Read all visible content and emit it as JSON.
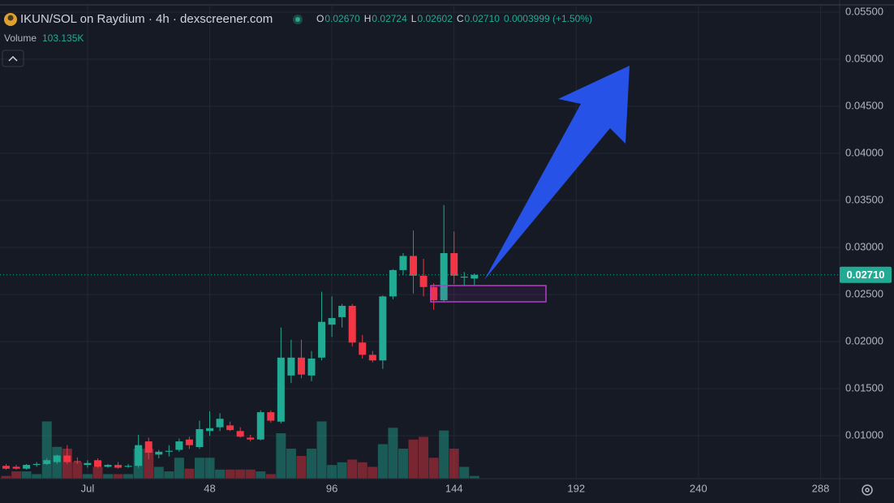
{
  "chart_data": {
    "type": "candlestick",
    "title": "IKUN/SOL on Raydium · 4h · dexscreener.com",
    "legend": [
      {
        "key": "O",
        "text": "0.02670"
      },
      {
        "key": "H",
        "text": "0.02724"
      },
      {
        "key": "L",
        "text": "0.02602"
      },
      {
        "key": "C",
        "text": "0.02710"
      }
    ],
    "change_text": "0.0003999 (+1.50%)",
    "x": [
      -32,
      -28,
      -24,
      -20,
      -16,
      -12,
      -8,
      -4,
      0,
      4,
      8,
      12,
      16,
      20,
      24,
      28,
      32,
      36,
      40,
      44,
      48,
      52,
      56,
      60,
      64,
      68,
      72,
      76,
      80,
      84,
      88,
      92,
      96,
      100,
      104,
      108,
      112,
      116,
      120,
      124,
      128,
      132,
      136,
      140,
      144,
      148,
      152
    ],
    "open": [
      0.0068,
      0.0067,
      0.0065,
      0.0069,
      0.007,
      0.0072,
      0.0079,
      0.0073,
      0.0069,
      0.0074,
      0.0067,
      0.0069,
      0.0067,
      0.0068,
      0.0094,
      0.008,
      0.0083,
      0.0085,
      0.0096,
      0.0088,
      0.0105,
      0.0109,
      0.0111,
      0.0105,
      0.0098,
      0.0096,
      0.0125,
      0.0115,
      0.0164,
      0.0183,
      0.0164,
      0.0183,
      0.0218,
      0.0226,
      0.0238,
      0.0199,
      0.0186,
      0.018,
      0.0248,
      0.0276,
      0.0291,
      0.027,
      0.0258,
      0.0244,
      0.0294,
      0.0268,
      0.0267
    ],
    "high": [
      0.007,
      0.0069,
      0.007,
      0.0072,
      0.0076,
      0.008,
      0.009,
      0.0077,
      0.0074,
      0.0076,
      0.007,
      0.0072,
      0.007,
      0.0101,
      0.0098,
      0.0085,
      0.009,
      0.0097,
      0.0099,
      0.0116,
      0.0126,
      0.0124,
      0.0115,
      0.0109,
      0.0101,
      0.0127,
      0.0127,
      0.0215,
      0.0202,
      0.0202,
      0.019,
      0.0253,
      0.0248,
      0.024,
      0.024,
      0.0207,
      0.019,
      0.0249,
      0.0277,
      0.0294,
      0.0318,
      0.0288,
      0.0262,
      0.0345,
      0.0317,
      0.0274,
      0.02724
    ],
    "low": [
      0.0064,
      0.0064,
      0.0064,
      0.0067,
      0.0069,
      0.007,
      0.007,
      0.007,
      0.0066,
      0.0066,
      0.0066,
      0.0065,
      0.0066,
      0.0066,
      0.0075,
      0.0076,
      0.0078,
      0.0083,
      0.0086,
      0.0086,
      0.01,
      0.0105,
      0.0105,
      0.0098,
      0.0094,
      0.0095,
      0.0114,
      0.0113,
      0.0156,
      0.0161,
      0.0158,
      0.018,
      0.0205,
      0.0215,
      0.0195,
      0.0182,
      0.0178,
      0.0171,
      0.0245,
      0.0271,
      0.0251,
      0.0248,
      0.0234,
      0.0242,
      0.0261,
      0.026,
      0.02602
    ],
    "close": [
      0.0065,
      0.0065,
      0.0069,
      0.007,
      0.0074,
      0.0079,
      0.0072,
      0.0072,
      0.0071,
      0.0067,
      0.0069,
      0.0066,
      0.0068,
      0.009,
      0.0082,
      0.0083,
      0.0084,
      0.0094,
      0.009,
      0.0107,
      0.0108,
      0.0118,
      0.0106,
      0.0099,
      0.0096,
      0.0125,
      0.0116,
      0.0183,
      0.0183,
      0.0165,
      0.0182,
      0.0221,
      0.0225,
      0.0238,
      0.0199,
      0.0186,
      0.018,
      0.0248,
      0.0276,
      0.0291,
      0.027,
      0.0258,
      0.0244,
      0.0294,
      0.027,
      0.0269,
      0.0271
    ],
    "volume": {
      "name": "Volume",
      "value_label": "103.135K",
      "values": [
        105,
        280,
        280,
        175,
        2205,
        1225,
        1155,
        630,
        175,
        455,
        175,
        175,
        175,
        1155,
        1155,
        455,
        280,
        805,
        385,
        805,
        805,
        350,
        350,
        350,
        350,
        280,
        175,
        1750,
        1155,
        875,
        1155,
        2205,
        525,
        630,
        735,
        630,
        455,
        1330,
        1960,
        1155,
        1505,
        1610,
        805,
        1855,
        1155,
        455,
        103.135
      ],
      "ylim": [
        0,
        5000
      ]
    },
    "up_color": "#22ab94",
    "down_color": "#f23645",
    "xlim": [
      -34.4,
      295.5
    ],
    "xticks": [
      {
        "value": 0,
        "label": "Jul"
      },
      48,
      96,
      144,
      192,
      240,
      288
    ],
    "ylim": [
      0.00544,
      0.05569
    ],
    "yticks": [
      {
        "value": 0.01,
        "label": "0.01000"
      },
      {
        "value": 0.015,
        "label": "0.01500"
      },
      {
        "value": 0.02,
        "label": "0.02000"
      },
      {
        "value": 0.025,
        "label": "0.02500"
      },
      {
        "value": 0.03,
        "label": "0.03000"
      },
      {
        "value": 0.035,
        "label": "0.03500"
      },
      {
        "value": 0.04,
        "label": "0.04000"
      },
      {
        "value": 0.045,
        "label": "0.04500"
      },
      {
        "value": 0.05,
        "label": "0.05000"
      },
      {
        "value": 0.055,
        "label": "0.05500"
      }
    ],
    "last_price": {
      "value": 0.0271,
      "label": "0.02710"
    },
    "grid": true
  }
}
